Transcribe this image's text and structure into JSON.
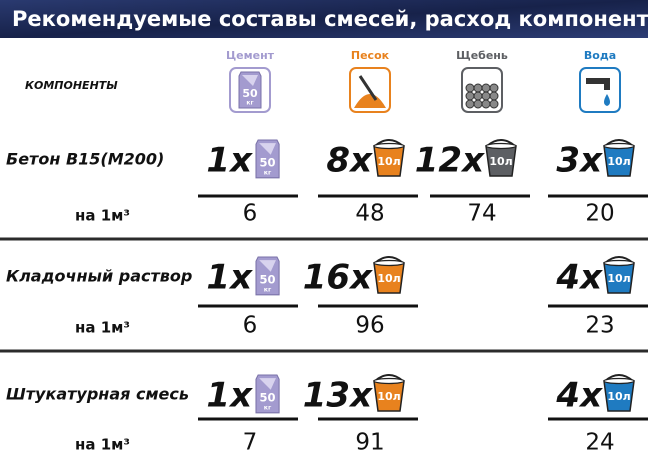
{
  "header": {
    "title": "Рекомендуемые составы смесей, расход компонентов"
  },
  "table": {
    "corner": "КОМПОНЕНТЫ",
    "columns": [
      {
        "name": "Цемент",
        "color": "#a39bcf"
      },
      {
        "name": "Песок",
        "color": "#e8821e"
      },
      {
        "name": "Щебень",
        "color": "#5d5f63"
      },
      {
        "name": "Вода",
        "color": "#1f7bc1"
      }
    ],
    "icons": {
      "bag_value": "50",
      "bag_unit": "кг",
      "bucket_label": "10л"
    },
    "per_unit": "на 1м³",
    "rows": [
      {
        "name": "Бетон В15(М200)",
        "multipliers": [
          "1х",
          "8х",
          "12х",
          "3х"
        ],
        "amounts": [
          6,
          48,
          74,
          20
        ]
      },
      {
        "name": "Кладочный раствор",
        "multipliers": [
          "1х",
          "16х",
          null,
          "4х"
        ],
        "amounts": [
          6,
          96,
          null,
          23
        ]
      },
      {
        "name": "Штукатурная смесь",
        "multipliers": [
          "1х",
          "13х",
          null,
          "4х"
        ],
        "amounts": [
          7,
          91,
          null,
          24
        ]
      }
    ]
  }
}
